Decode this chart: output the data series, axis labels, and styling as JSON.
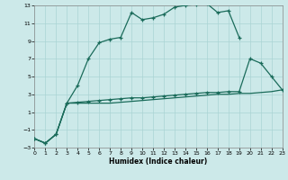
{
  "xlabel": "Humidex (Indice chaleur)",
  "bg_color": "#cce9e9",
  "grid_color": "#aad4d4",
  "line_color": "#1a6b5a",
  "xlim": [
    0,
    23
  ],
  "ylim": [
    -3,
    13
  ],
  "xticks": [
    0,
    1,
    2,
    3,
    4,
    5,
    6,
    7,
    8,
    9,
    10,
    11,
    12,
    13,
    14,
    15,
    16,
    17,
    18,
    19,
    20,
    21,
    22,
    23
  ],
  "yticks": [
    -3,
    -1,
    1,
    3,
    5,
    7,
    9,
    11,
    13
  ],
  "line1_x": [
    0,
    1,
    2,
    3,
    4,
    5,
    6,
    7,
    8,
    9,
    10,
    11,
    12,
    13,
    14,
    15,
    16,
    17,
    18,
    19
  ],
  "line1_y": [
    -2.0,
    -2.5,
    -1.5,
    2.0,
    4.0,
    7.0,
    8.8,
    9.2,
    9.4,
    12.2,
    11.4,
    11.6,
    12.0,
    12.8,
    13.0,
    13.1,
    13.2,
    12.2,
    12.4,
    9.4
  ],
  "line2_x": [
    0,
    1,
    2,
    3,
    4,
    5,
    6,
    7,
    8,
    9,
    10,
    11,
    12,
    13,
    14,
    15,
    16,
    17,
    18,
    19,
    20,
    21,
    22,
    23
  ],
  "line2_y": [
    -2.0,
    -2.5,
    -1.5,
    2.0,
    2.1,
    2.2,
    2.3,
    2.4,
    2.5,
    2.6,
    2.6,
    2.7,
    2.8,
    2.9,
    3.0,
    3.1,
    3.2,
    3.2,
    3.3,
    3.3,
    7.0,
    6.5,
    5.0,
    3.5
  ],
  "line3_x": [
    0,
    1,
    2,
    3,
    4,
    5,
    6,
    7,
    8,
    9,
    10,
    11,
    12,
    13,
    14,
    15,
    16,
    17,
    18,
    19,
    20,
    21,
    22,
    23
  ],
  "line3_y": [
    -2.0,
    -2.5,
    -1.5,
    2.0,
    2.0,
    2.0,
    2.0,
    2.0,
    2.1,
    2.2,
    2.3,
    2.4,
    2.5,
    2.6,
    2.7,
    2.8,
    2.9,
    3.0,
    3.0,
    3.1,
    3.1,
    3.2,
    3.3,
    3.5
  ]
}
